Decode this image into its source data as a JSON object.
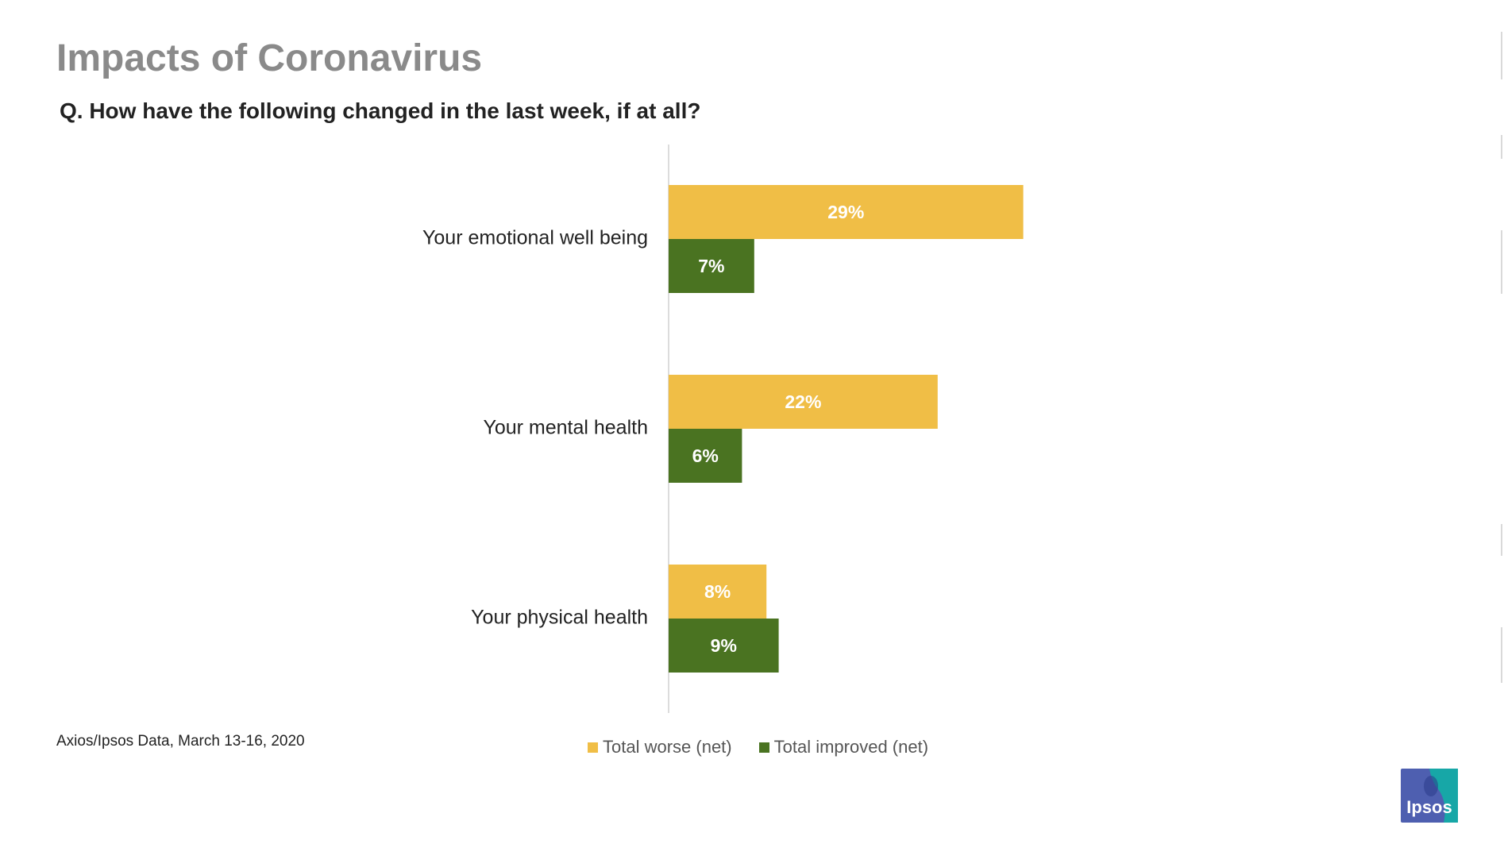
{
  "page": {
    "title": "Impacts of Coronavirus",
    "subtitle": "Q. How have the following changed in the last week, if at all?",
    "source": "Axios/Ipsos Data, March 13-16, 2020",
    "logo_text": "Ipsos"
  },
  "colors": {
    "worse": "#F0BE46",
    "improved": "#4A7321",
    "title": "#8a8a8a",
    "logo_blue": "#4E5FB0",
    "logo_teal": "#17A7A7"
  },
  "chart_data": {
    "type": "bar",
    "orientation": "horizontal",
    "categories": [
      "Your emotional well being",
      "Your mental health",
      "Your physical health"
    ],
    "series": [
      {
        "name": "Total worse (net)",
        "values": [
          29,
          22,
          8
        ],
        "labels": [
          "29%",
          "22%",
          "8%"
        ]
      },
      {
        "name": "Total improved (net)",
        "values": [
          7,
          6,
          9
        ],
        "labels": [
          "7%",
          "6%",
          "9%"
        ]
      }
    ],
    "value_axis_range": [
      0,
      100
    ],
    "gridlines": false,
    "legend_position": "bottom"
  }
}
